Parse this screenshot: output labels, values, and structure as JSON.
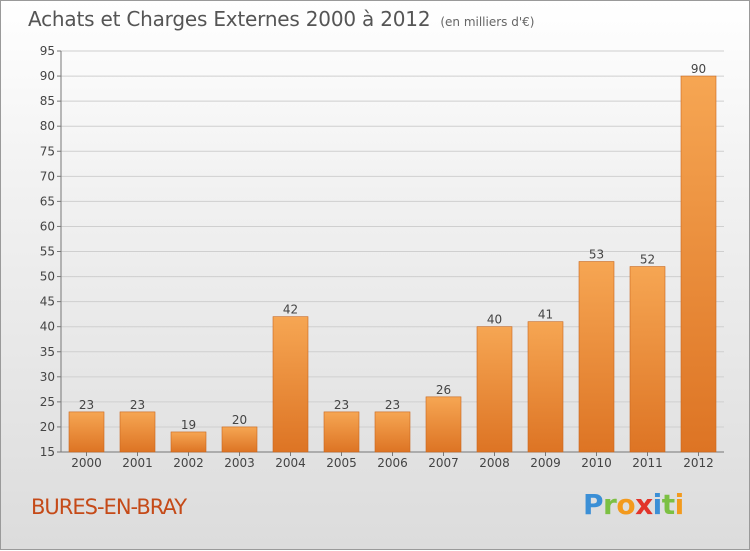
{
  "header": {
    "title": "Achats et Charges Externes 2000 à 2012",
    "subtitle": "(en milliers d'€)"
  },
  "footer": {
    "place": "BURES-EN-BRAY",
    "brand_letters": [
      {
        "ch": "P",
        "color": "#3b8fd6"
      },
      {
        "ch": "r",
        "color": "#7cc043"
      },
      {
        "ch": "o",
        "color": "#f39a1d"
      },
      {
        "ch": "x",
        "color": "#e2342a"
      },
      {
        "ch": "i",
        "color": "#3b8fd6"
      },
      {
        "ch": "t",
        "color": "#7cc043"
      },
      {
        "ch": "i",
        "color": "#f39a1d"
      }
    ]
  },
  "chart_data": {
    "type": "bar",
    "title": "Achats et Charges Externes 2000 à 2012",
    "subtitle": "(en milliers d'€)",
    "categories": [
      "2000",
      "2001",
      "2002",
      "2003",
      "2004",
      "2005",
      "2006",
      "2007",
      "2008",
      "2009",
      "2010",
      "2011",
      "2012"
    ],
    "values": [
      23,
      23,
      19,
      20,
      42,
      23,
      23,
      26,
      40,
      41,
      53,
      52,
      90
    ],
    "data_labels": [
      "23",
      "23",
      "19",
      "20",
      "42",
      "23",
      "23",
      "26",
      "40",
      "41",
      "53",
      "52",
      "90"
    ],
    "ylim": [
      15,
      95
    ],
    "yticks": [
      15,
      20,
      25,
      30,
      35,
      40,
      45,
      50,
      55,
      60,
      65,
      70,
      75,
      80,
      85,
      90,
      95
    ],
    "grid": true,
    "legend": "none",
    "colors": {
      "bar_light": "#f6a653",
      "bar_dark": "#dd7424",
      "bar_edge": "#c8661e"
    }
  }
}
